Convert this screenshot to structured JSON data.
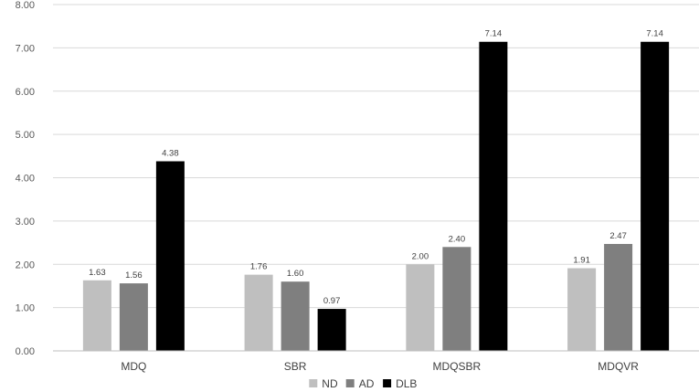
{
  "chart_data": {
    "type": "bar",
    "categories": [
      "MDQ",
      "SBR",
      "MDQSBR",
      "MDQVR"
    ],
    "series": [
      {
        "name": "ND",
        "color": "#bfbfbf",
        "values": [
          1.63,
          1.76,
          2.0,
          1.91
        ],
        "labels": [
          "1.63",
          "1.76",
          "2.00",
          "1.91"
        ]
      },
      {
        "name": "AD",
        "color": "#7f7f7f",
        "values": [
          1.56,
          1.6,
          2.4,
          2.47
        ],
        "labels": [
          "1.56",
          "1.60",
          "2.40",
          "2.47"
        ]
      },
      {
        "name": "DLB",
        "color": "#000000",
        "values": [
          4.38,
          0.97,
          7.14,
          7.14
        ],
        "labels": [
          "4.38",
          "0.97",
          "7.14",
          "7.14"
        ]
      }
    ],
    "ylim": [
      0,
      8
    ],
    "yticks": [
      "0.00",
      "1.00",
      "2.00",
      "3.00",
      "4.00",
      "5.00",
      "6.00",
      "7.00",
      "8.00"
    ],
    "grid": true,
    "legend_position": "bottom",
    "gridline_color": "#d9d9d9",
    "axis_color": "#bfbfbf"
  }
}
